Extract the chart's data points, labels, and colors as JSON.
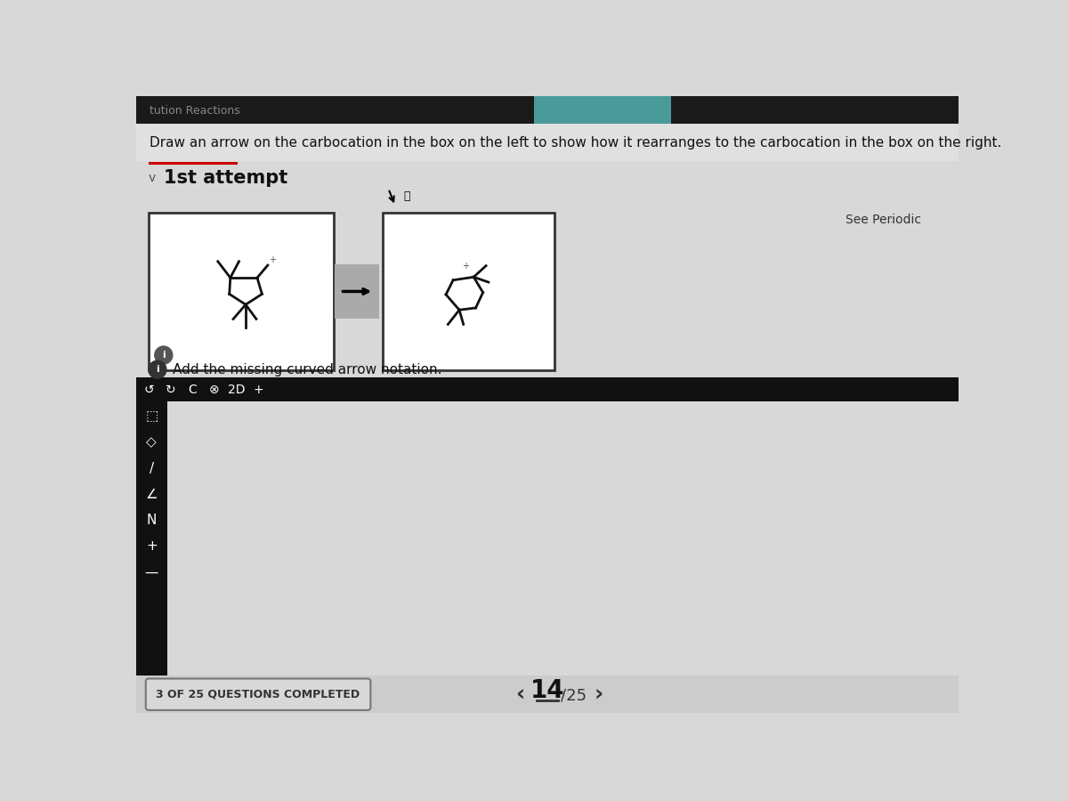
{
  "title": "Draw an arrow on the carbocation in the box on the left to show how it rearranges to the carbocation in the box on the right.",
  "attempt_label": "1st attempt",
  "see_periodic_text": "See Periodic",
  "feedback_text": "Add the missing curved arrow notation.",
  "nav_text_14": "14",
  "nav_text_25": "/25",
  "questions_text": "3 OF 25 QUESTIONS COMPLETED",
  "bg_color": "#d8d8d8",
  "top_bar_color": "#1a1a1a",
  "title_bg": "#e0e0e0",
  "box_border": "#333333",
  "line_color": "#111111",
  "toolbar_bg": "#111111",
  "sidebar_bg": "#111111",
  "bottom_bg": "#d8d8d8"
}
